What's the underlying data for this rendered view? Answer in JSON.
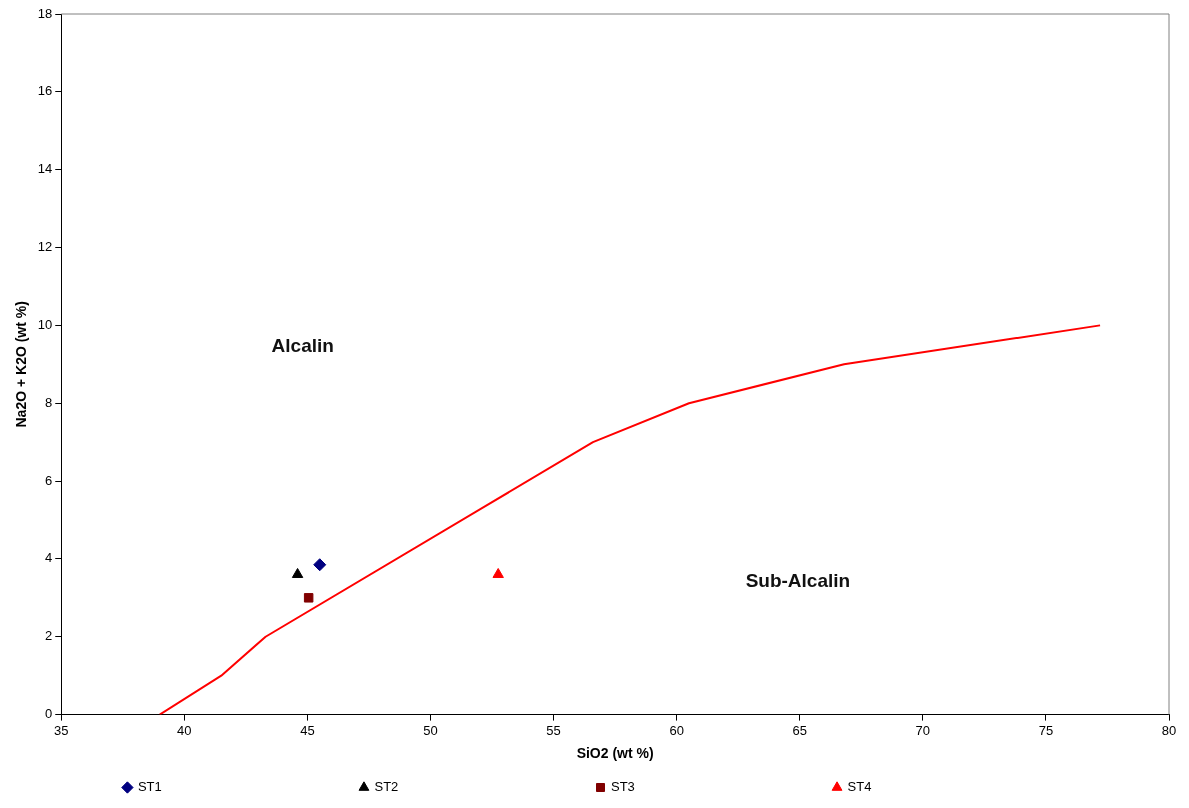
{
  "chart_data": {
    "type": "scatter",
    "xlabel": "SiO2 (wt %)",
    "ylabel": "Na2O + K2O (wt %)",
    "xlim": [
      35,
      80
    ],
    "xticks": [
      35,
      40,
      45,
      50,
      55,
      60,
      65,
      70,
      75,
      80
    ],
    "ylim": [
      0,
      18
    ],
    "yticks": [
      0,
      2,
      4,
      6,
      8,
      10,
      12,
      14,
      16,
      18
    ],
    "grid": false,
    "legend": "bottom",
    "series": [
      {
        "type": "line",
        "color": "#ff0000",
        "marker": "none",
        "line_style": "solid",
        "x": [
          39,
          41.5,
          43.3,
          56.6,
          60.5,
          66.8,
          77.2
        ],
        "values": [
          0,
          1,
          2,
          7,
          8,
          9,
          10
        ]
      },
      {
        "name": "ST1",
        "color": "#000080",
        "marker": "diamond",
        "x": [
          45.5
        ],
        "values": [
          3.85
        ]
      },
      {
        "name": "ST2",
        "color": "#000000",
        "marker": "triangle",
        "x": [
          44.6
        ],
        "values": [
          3.6
        ]
      },
      {
        "name": "ST3",
        "color": "#800000",
        "marker": "square",
        "x": [
          45.05
        ],
        "values": [
          3.0
        ]
      },
      {
        "name": "ST4",
        "color": "#ff0000",
        "marker": "triangle",
        "x": [
          52.75
        ],
        "values": [
          3.6
        ]
      }
    ],
    "annotations": [
      "Alcalin",
      "Sub-Alcalin"
    ]
  }
}
